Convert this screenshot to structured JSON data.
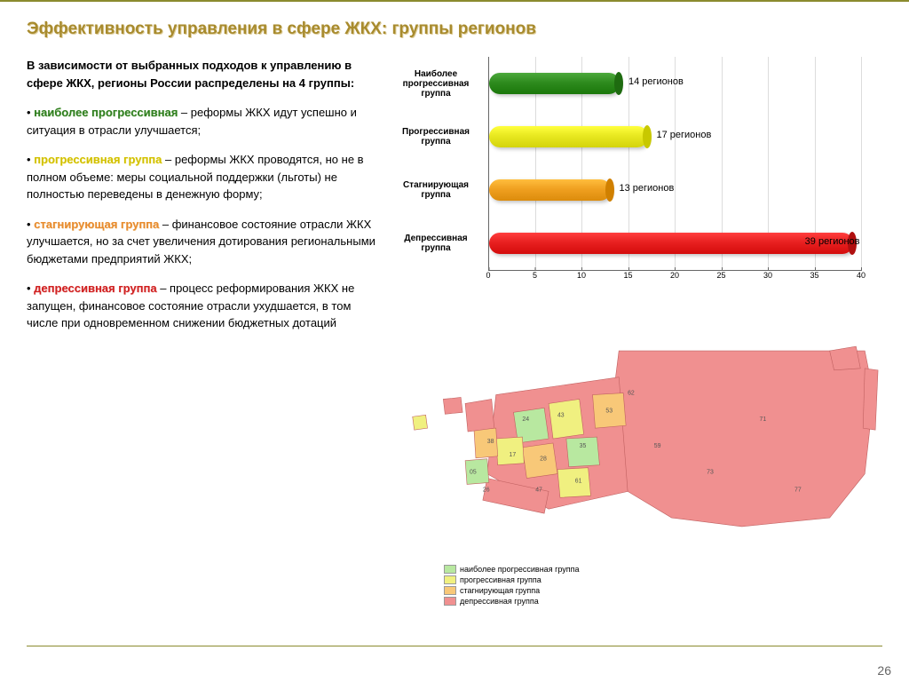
{
  "title": "Эффективность управления в сфере ЖКХ: группы регионов",
  "page_number": "26",
  "intro": "В зависимости от выбранных подходов к управлению в сфере ЖКХ, регионы России распределены на 4 группы:",
  "bullets": [
    {
      "hl": "наиболее прогрессивная",
      "hl_class": "hl-green",
      "rest": " – реформы ЖКХ идут успешно и ситуация в отрасли улучшается;"
    },
    {
      "hl": "прогрессивная группа",
      "hl_class": "hl-yellow",
      "rest": " – реформы ЖКХ проводятся, но не в полном объеме: меры социальной поддержки (льготы) не полностью переведены в денежную форму;"
    },
    {
      "hl": "стагнирующая группа",
      "hl_class": "hl-orange",
      "rest": " – финансовое состояние отрасли ЖКХ улучшается, но за счет увеличения дотирования региональными бюджетами предприятий ЖКХ;"
    },
    {
      "hl": "депрессивная группа",
      "hl_class": "hl-red",
      "rest": " – процесс реформирования ЖКХ не запущен, финансовое состояние отрасли ухудшается, в том числе при одновременном снижении бюджетных дотаций"
    }
  ],
  "chart": {
    "type": "bar-horizontal-3d",
    "x_max": 40,
    "x_tick_step": 5,
    "categories": [
      {
        "label": "Наиболее прогрессивная группа",
        "value": 14,
        "value_label": "14 регионов",
        "color_main": "#2e8b1e",
        "color_cap": "#1e6b10"
      },
      {
        "label": "Прогрессивная группа",
        "value": 17,
        "value_label": "17 регионов",
        "color_main": "#e8e820",
        "color_cap": "#c8c800"
      },
      {
        "label": "Стагнирующая группа",
        "value": 13,
        "value_label": "13 регионов",
        "color_main": "#f0a020",
        "color_cap": "#d08000"
      },
      {
        "label": "Депрессивная группа",
        "value": 39,
        "value_label": "39 регионов",
        "color_main": "#e82020",
        "color_cap": "#b01010"
      }
    ],
    "x_ticks": [
      "0",
      "5",
      "10",
      "15",
      "20",
      "25",
      "30",
      "35",
      "40"
    ],
    "grid_color": "#dcdcdc"
  },
  "map_legend": [
    {
      "color": "#b8e8a0",
      "label": "наиболее прогрессивная группа"
    },
    {
      "color": "#f0f080",
      "label": "прогрессивная группа"
    },
    {
      "color": "#f8c878",
      "label": "стагнирующая группа"
    },
    {
      "color": "#f09090",
      "label": "депрессивная группа"
    }
  ],
  "map_colors": {
    "most_prog": "#b8e8a0",
    "prog": "#f0f080",
    "stag": "#f8c878",
    "depr": "#f09090",
    "border": "#c06060"
  }
}
